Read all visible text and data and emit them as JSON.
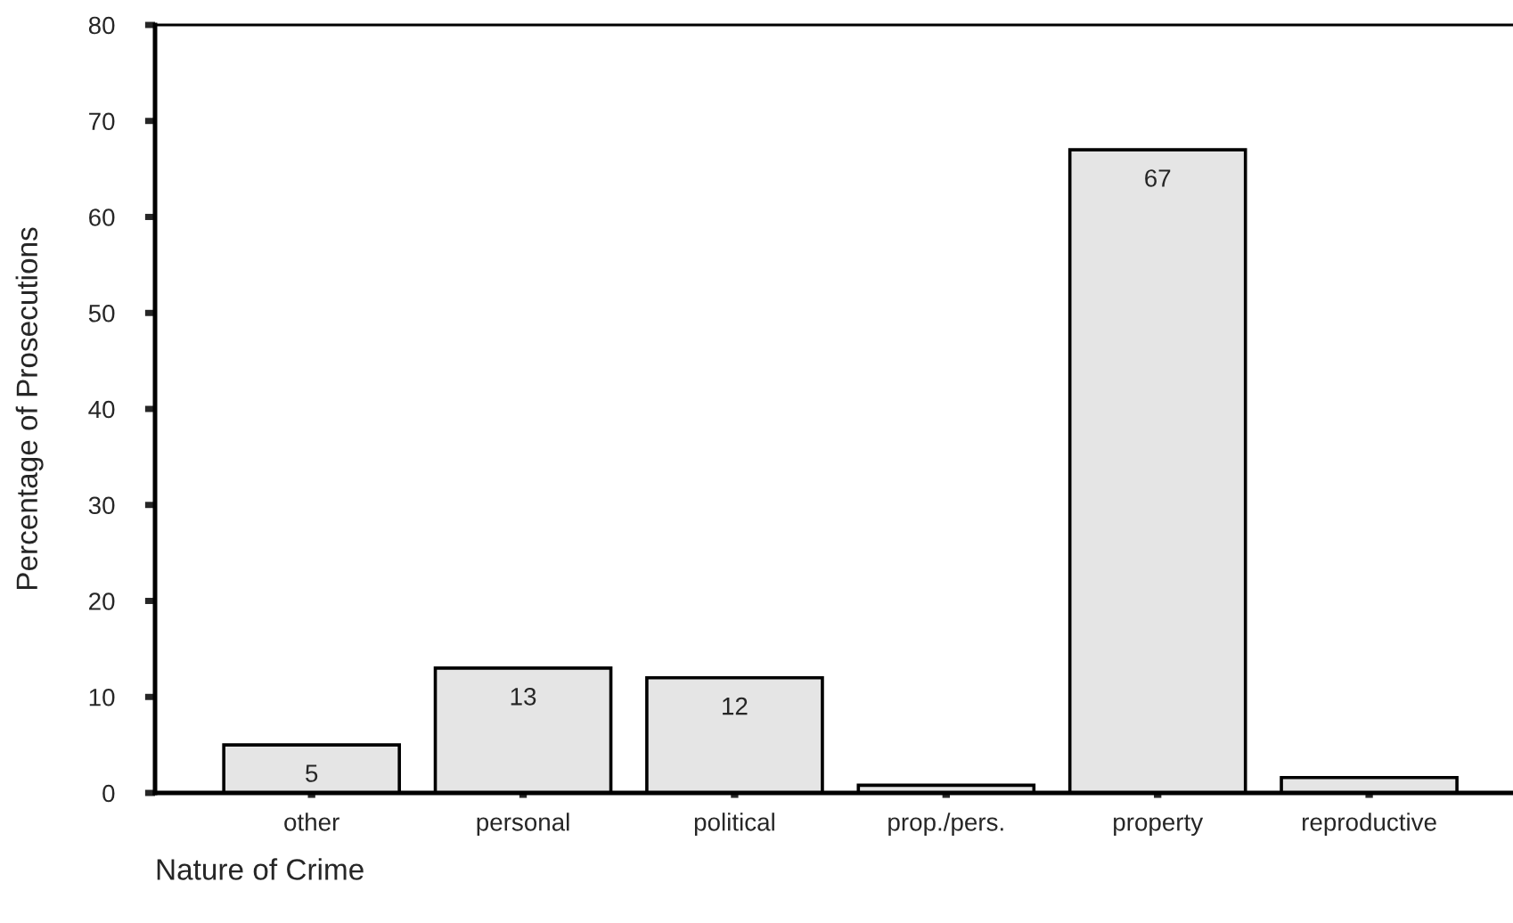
{
  "chart_data": {
    "type": "bar",
    "xlabel": "Nature of Crime",
    "ylabel": "Percentage of Prosecutions",
    "categories": [
      "other",
      "personal",
      "political",
      "prop./pers.",
      "property",
      "reproductive"
    ],
    "values": [
      5,
      13,
      12,
      0.8,
      67,
      1.6
    ],
    "value_labels": [
      "5",
      "13",
      "12",
      null,
      "67",
      null
    ],
    "color": "#e5e5e5",
    "ylim": [
      0,
      80
    ],
    "yticks": [
      0,
      10,
      20,
      30,
      40,
      50,
      60,
      70,
      80
    ],
    "grid": false,
    "legend": false
  }
}
